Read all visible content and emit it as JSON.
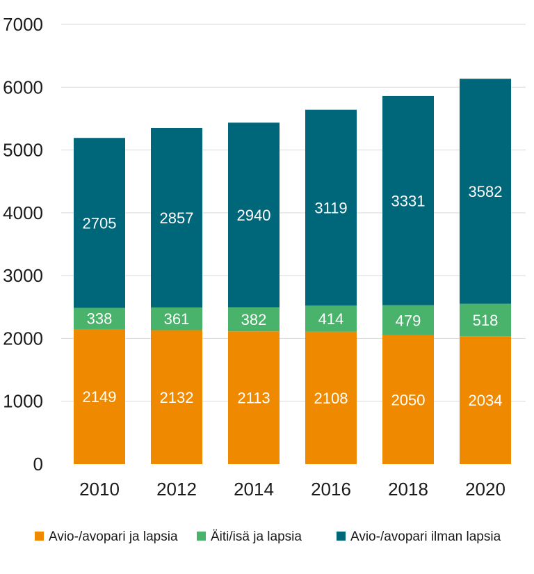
{
  "chart_data": {
    "type": "bar",
    "stacked": true,
    "categories": [
      "2010",
      "2012",
      "2014",
      "2016",
      "2018",
      "2020"
    ],
    "series": [
      {
        "name": "Avio-/avopari ja lapsia",
        "color": "#ef8a00",
        "values": [
          2149,
          2132,
          2113,
          2108,
          2050,
          2034
        ]
      },
      {
        "name": "Äiti/isä ja lapsia",
        "color": "#49b26b",
        "values": [
          338,
          361,
          382,
          414,
          479,
          518
        ]
      },
      {
        "name": "Avio-/avopari ilman lapsia",
        "color": "#00667a",
        "values": [
          2705,
          2857,
          2940,
          3119,
          3331,
          3582
        ]
      }
    ],
    "ylim": [
      0,
      7000
    ],
    "yticks": [
      0,
      1000,
      2000,
      3000,
      4000,
      5000,
      6000,
      7000
    ],
    "grid": true,
    "legend_position": "bottom"
  }
}
